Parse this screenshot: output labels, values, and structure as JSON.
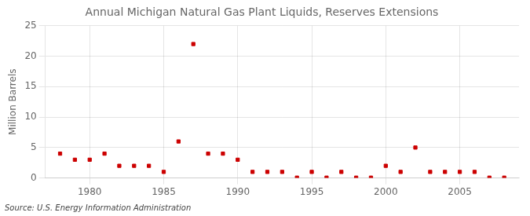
{
  "chart_data": {
    "type": "scatter",
    "title": "Annual Michigan Natural Gas Plant Liquids, Reserves Extensions",
    "ylabel": "Million Barrels",
    "annotations": [
      "Source: U.S. Energy Information Administration"
    ],
    "x": [
      1978,
      1979,
      1980,
      1981,
      1982,
      1983,
      1984,
      1985,
      1986,
      1987,
      1988,
      1989,
      1990,
      1991,
      1992,
      1993,
      1994,
      1995,
      1996,
      1997,
      1998,
      1999,
      2000,
      2001,
      2002,
      2003,
      2004,
      2005,
      2006,
      2007,
      2008
    ],
    "values": [
      4.0,
      3.0,
      3.0,
      4.0,
      2.0,
      2.0,
      2.0,
      1.0,
      6.0,
      22.0,
      4.0,
      4.0,
      3.0,
      1.0,
      1.0,
      1.0,
      0.05,
      1.0,
      0.05,
      1.0,
      0.05,
      0.05,
      2.0,
      1.0,
      5.0,
      1.0,
      1.0,
      1.0,
      1.0,
      0.05,
      0.05
    ],
    "color": "#cc0000",
    "marker": "square",
    "xlim": [
      1977,
      2009
    ],
    "xticks": [
      1980,
      1985,
      1990,
      1995,
      2000,
      2005
    ],
    "ylim": [
      0,
      25
    ],
    "yticks": [
      0,
      5,
      10,
      15,
      20,
      25
    ],
    "grid": true
  }
}
